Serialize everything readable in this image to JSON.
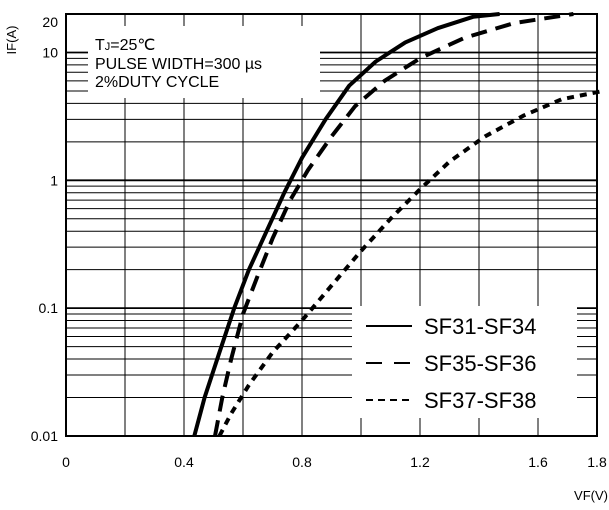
{
  "chart_data": {
    "type": "line",
    "xlabel": "VF(V)",
    "ylabel": "IF(A)",
    "x_scale": "linear",
    "y_scale": "log",
    "xlim": [
      0,
      1.8
    ],
    "ylim": [
      0.01,
      20
    ],
    "x_ticks": [
      {
        "value": 0,
        "label": "0"
      },
      {
        "value": 0.4,
        "label": "0.4"
      },
      {
        "value": 0.8,
        "label": "0.8"
      },
      {
        "value": 1.2,
        "label": "1.2"
      },
      {
        "value": 1.6,
        "label": "1.6"
      },
      {
        "value": 1.8,
        "label": "1.8"
      }
    ],
    "y_ticks": [
      {
        "value": 0.01,
        "label": "0.01"
      },
      {
        "value": 0.1,
        "label": "0.1"
      },
      {
        "value": 1,
        "label": "1"
      },
      {
        "value": 10,
        "label": "10"
      },
      {
        "value": 20,
        "label": "20"
      }
    ],
    "grid": true,
    "annotations": {
      "line1_main": "T",
      "line1_sub": "J",
      "line1_rest": "=25℃",
      "line2": "PULSE WIDTH=300 µs",
      "line3": "2%DUTY CYCLE"
    },
    "legend_position": "bottom-right",
    "series": [
      {
        "name": "SF31-SF34",
        "style": "solid",
        "x": [
          0.435,
          0.47,
          0.52,
          0.57,
          0.62,
          0.68,
          0.74,
          0.8,
          0.88,
          0.96,
          1.05,
          1.15,
          1.26,
          1.38,
          1.47
        ],
        "y": [
          0.01,
          0.02,
          0.045,
          0.1,
          0.2,
          0.4,
          0.8,
          1.5,
          3.0,
          5.5,
          8.5,
          12.0,
          15.5,
          19.0,
          20.0
        ]
      },
      {
        "name": "SF35-SF36",
        "style": "dashed",
        "x": [
          0.505,
          0.53,
          0.56,
          0.6,
          0.65,
          0.7,
          0.76,
          0.82,
          0.9,
          0.98,
          1.08,
          1.2,
          1.35,
          1.52,
          1.72
        ],
        "y": [
          0.01,
          0.02,
          0.04,
          0.09,
          0.18,
          0.35,
          0.7,
          1.2,
          2.2,
          3.8,
          6.0,
          9.0,
          13.0,
          17.0,
          20.0
        ]
      },
      {
        "name": "SF37-SF38",
        "style": "dotted",
        "x": [
          0.52,
          0.56,
          0.62,
          0.7,
          0.8,
          0.9,
          1.0,
          1.1,
          1.2,
          1.3,
          1.42,
          1.55,
          1.68,
          1.82
        ],
        "y": [
          0.01,
          0.015,
          0.025,
          0.045,
          0.08,
          0.15,
          0.28,
          0.5,
          0.85,
          1.4,
          2.2,
          3.2,
          4.3,
          5.0
        ]
      }
    ]
  }
}
